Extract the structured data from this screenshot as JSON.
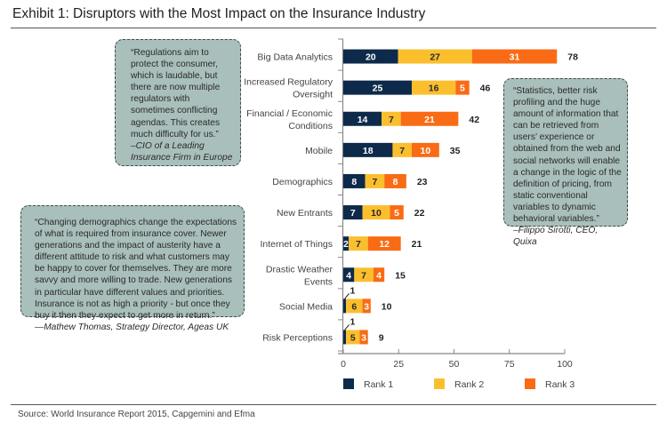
{
  "header": {
    "title": "Exhibit 1: Disruptors with the Most Impact on the Insurance Industry"
  },
  "footer": {
    "source": "Source: World Insurance Report 2015, Capgemini and Efma"
  },
  "quotes": [
    {
      "text": "“Regulations aim to protect the consumer, which is laudable, but there are now multiple regulators with sometimes conflicting agendas. This creates much difficulty for us.”",
      "attribution": "–CIO of a Leading Insurance Firm in Europe"
    },
    {
      "text": "“Changing demographics change the expectations of what is required from insurance cover. Newer generations and the impact of austerity have a different attitude to risk and what customers may be happy to cover for themselves. They are more savvy and more willing to trade. New generations in particular have different values and priorities. Insurance is not as high a priority - but once they buy it then they expect to get more in return.”",
      "attribution": "—Mathew Thomas, Strategy Director, Ageas UK"
    },
    {
      "text": "“Statistics, better risk profiling and the huge amount of information that can be retrieved from users’ experience or obtained from the web and social networks will enable a change in the logic of the definition of pricing, from static conventional variables to dynamic behavioral variables.”",
      "attribution": "–Filippo Sirotti, CEO, Quixa"
    }
  ],
  "chart_data": {
    "type": "bar",
    "orientation": "horizontal",
    "stacked": true,
    "title": "Exhibit 1: Disruptors with the Most Impact on the Insurance Industry",
    "xlabel": "",
    "ylabel": "",
    "xlim": [
      0,
      100
    ],
    "xticks": [
      0,
      25,
      50,
      75,
      100
    ],
    "grid": false,
    "legend_position": "bottom",
    "categories": [
      "Big Data Analytics",
      "Increased Regulatory Oversight",
      "Financial / Economic Conditions",
      "Mobile",
      "Demographics",
      "New Entrants",
      "Internet of Things",
      "Drastic Weather Events",
      "Social Media",
      "Risk Perceptions"
    ],
    "category_lines": [
      [
        "Big Data Analytics"
      ],
      [
        "Increased Regulatory",
        "Oversight"
      ],
      [
        "Financial / Economic",
        "Conditions"
      ],
      [
        "Mobile"
      ],
      [
        "Demographics"
      ],
      [
        "New Entrants"
      ],
      [
        "Internet of Things"
      ],
      [
        "Drastic Weather",
        "Events"
      ],
      [
        "Social Media"
      ],
      [
        "Risk Perceptions"
      ]
    ],
    "series": [
      {
        "name": "Rank 1",
        "color": "#0d2a4a",
        "label_color": "#ffffff",
        "values": [
          20,
          25,
          14,
          18,
          8,
          7,
          2,
          4,
          1,
          1
        ]
      },
      {
        "name": "Rank 2",
        "color": "#fbbf2e",
        "label_color": "#2a2a2a",
        "values": [
          27,
          16,
          7,
          7,
          7,
          10,
          7,
          7,
          6,
          5
        ]
      },
      {
        "name": "Rank 3",
        "color": "#f96b14",
        "label_color": "#ffffff",
        "values": [
          31,
          5,
          21,
          10,
          8,
          5,
          12,
          4,
          3,
          3
        ]
      }
    ],
    "totals": [
      78,
      46,
      42,
      35,
      23,
      22,
      21,
      15,
      10,
      9
    ]
  }
}
